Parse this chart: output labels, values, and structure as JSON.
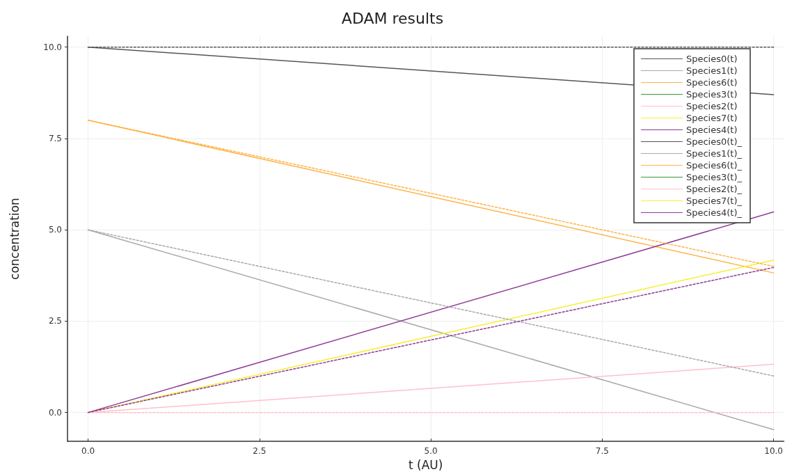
{
  "chart_data": {
    "type": "line",
    "title": "ADAM results",
    "xlabel": "t (AU)",
    "ylabel": "concentration",
    "x": [
      0,
      10
    ],
    "xlim": [
      -0.3,
      10.15
    ],
    "ylim": [
      -0.79,
      10.3
    ],
    "xticks": [
      {
        "value": 0,
        "label": "0.0"
      },
      {
        "value": 2.5,
        "label": "2.5"
      },
      {
        "value": 5,
        "label": "5.0"
      },
      {
        "value": 7.5,
        "label": "7.5"
      },
      {
        "value": 10,
        "label": "10.0"
      }
    ],
    "yticks": [
      {
        "value": 0,
        "label": "0.0"
      },
      {
        "value": 2.5,
        "label": "2.5"
      },
      {
        "value": 5,
        "label": "5.0"
      },
      {
        "value": 7.5,
        "label": "7.5"
      },
      {
        "value": 10,
        "label": "10.0"
      }
    ],
    "grid": true,
    "legend": "top right",
    "marker": "none",
    "series": [
      {
        "name": "Species0(t)",
        "color": "#555555",
        "values": [
          10,
          8.7
        ],
        "line_style": "solid"
      },
      {
        "name": "Species1(t)",
        "color": "#a9a9a9",
        "values": [
          5,
          -0.47
        ],
        "line_style": "solid"
      },
      {
        "name": "Species6(t)",
        "color": "#ffb347",
        "values": [
          8,
          3.82
        ],
        "line_style": "solid"
      },
      {
        "name": "Species3(t)",
        "color": "#3a9a3a",
        "values": [
          null,
          null
        ],
        "line_style": "solid"
      },
      {
        "name": "Species2(t)",
        "color": "#ffc0cb",
        "values": [
          0,
          1.32
        ],
        "line_style": "solid"
      },
      {
        "name": "Species7(t)",
        "color": "#f5f032",
        "values": [
          0,
          4.17
        ],
        "line_style": "solid"
      },
      {
        "name": "Species4(t)",
        "color": "#8e3a96",
        "values": [
          0,
          5.49
        ],
        "line_style": "solid"
      },
      {
        "name": "Species0(t)_",
        "color": "#555555",
        "values": [
          10,
          10
        ],
        "line_style": "dashed"
      },
      {
        "name": "Species1(t)_",
        "color": "#a9a9a9",
        "values": [
          5,
          1.0
        ],
        "line_style": "dashed"
      },
      {
        "name": "Species6(t)_",
        "color": "#ffb347",
        "values": [
          8,
          4.0
        ],
        "line_style": "dashed"
      },
      {
        "name": "Species3(t)_",
        "color": "#3a9a3a",
        "values": [
          null,
          null
        ],
        "line_style": "dashed"
      },
      {
        "name": "Species2(t)_",
        "color": "#ffc0cb",
        "values": [
          0,
          0
        ],
        "line_style": "dashed"
      },
      {
        "name": "Species7(t)_",
        "color": "#f5f032",
        "values": [
          null,
          null
        ],
        "line_style": "dashed"
      },
      {
        "name": "Species4(t)_",
        "color": "#8e3a96",
        "values": [
          0,
          3.97
        ],
        "line_style": "dashed"
      }
    ]
  }
}
